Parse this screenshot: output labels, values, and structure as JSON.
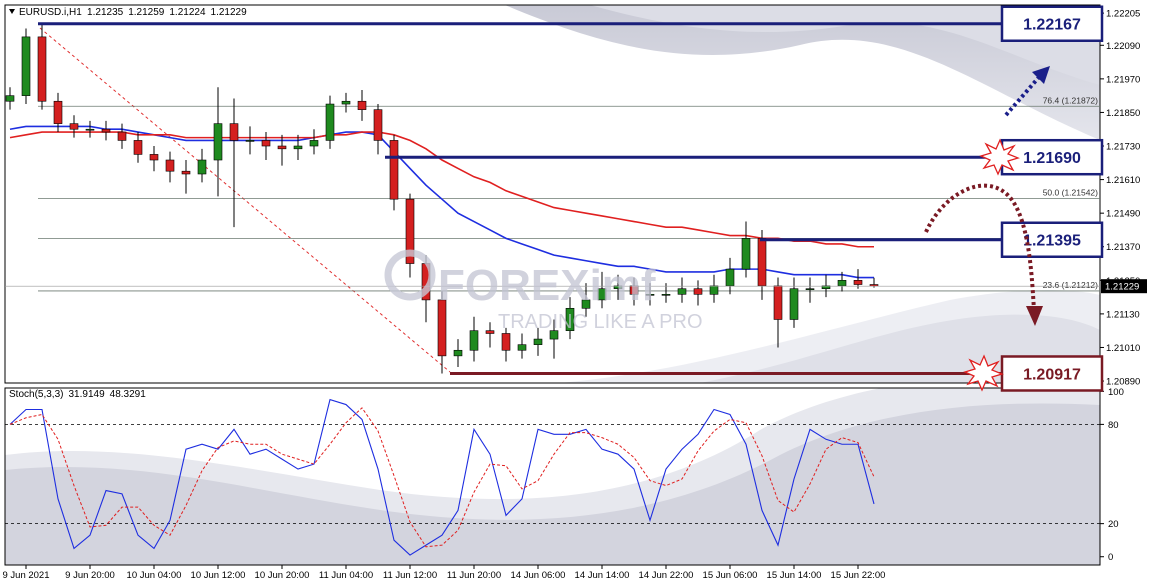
{
  "chart_data": {
    "type": "candlestick",
    "symbol": "EURUSD.i,H1",
    "categories": [
      null,
      "9 Jun 2021",
      null,
      null,
      null,
      "9 Jun 20:00",
      null,
      null,
      null,
      "10 Jun 04:00",
      null,
      null,
      null,
      "10 Jun 12:00",
      null,
      null,
      null,
      "10 Jun 20:00",
      null,
      null,
      null,
      "11 Jun 04:00",
      null,
      null,
      null,
      "11 Jun 12:00",
      null,
      null,
      null,
      "11 Jun 20:00",
      null,
      null,
      null,
      "14 Jun 06:00",
      null,
      null,
      null,
      "14 Jun 14:00",
      null,
      null,
      null,
      "14 Jun 22:00",
      null,
      null,
      null,
      "15 Jun 06:00",
      null,
      null,
      null,
      "15 Jun 14:00",
      null,
      null,
      null,
      "15 Jun 22:00",
      null
    ],
    "ohlc": {
      "open": [
        1.2189,
        1.2191,
        1.2212,
        1.2189,
        1.2181,
        1.2179,
        1.2179,
        1.2178,
        1.2175,
        1.217,
        1.2168,
        1.2164,
        1.2163,
        1.2168,
        1.2181,
        1.2175,
        1.2175,
        1.2173,
        1.2172,
        1.2173,
        1.2175,
        1.2188,
        1.2189,
        1.2186,
        1.2175,
        1.2154,
        1.2131,
        1.2118,
        1.2098,
        1.21,
        1.2107,
        1.2106,
        1.21,
        1.2102,
        1.2104,
        1.2107,
        1.2115,
        1.2118,
        1.2122,
        1.2123,
        1.212,
        1.212,
        1.212,
        1.2122,
        1.212,
        1.2123,
        1.2129,
        1.214,
        1.2123,
        1.2111,
        1.2122,
        1.2122,
        1.2123,
        1.2125,
        1.21235
      ],
      "high": [
        1.2194,
        1.2215,
        1.2217,
        1.2192,
        1.2184,
        1.2182,
        1.2182,
        1.2181,
        1.2178,
        1.2173,
        1.2171,
        1.2168,
        1.2172,
        1.2194,
        1.219,
        1.218,
        1.2178,
        1.2177,
        1.2177,
        1.2179,
        1.2191,
        1.2192,
        1.2193,
        1.2188,
        1.2177,
        1.2156,
        1.2134,
        1.2121,
        1.2104,
        1.2112,
        1.211,
        1.2108,
        1.2106,
        1.2108,
        1.2111,
        1.2119,
        1.2124,
        1.2128,
        1.2127,
        1.2126,
        1.2124,
        1.2124,
        1.2126,
        1.2125,
        1.2127,
        1.2133,
        1.2146,
        1.2143,
        1.2126,
        1.2126,
        1.2126,
        1.2127,
        1.2128,
        1.2129,
        1.21259
      ],
      "low": [
        1.2186,
        1.2188,
        1.2186,
        1.2178,
        1.2176,
        1.2176,
        1.2175,
        1.2172,
        1.2167,
        1.2164,
        1.216,
        1.2156,
        1.216,
        1.2155,
        1.2144,
        1.217,
        1.2168,
        1.2166,
        1.2168,
        1.217,
        1.2172,
        1.2185,
        1.2182,
        1.217,
        1.215,
        1.2126,
        1.211,
        1.20917,
        1.2094,
        1.2096,
        1.2101,
        1.2096,
        1.2097,
        1.2098,
        1.2097,
        1.2104,
        1.2112,
        1.2115,
        1.2118,
        1.2116,
        1.2116,
        1.2117,
        1.2117,
        1.2116,
        1.2117,
        1.212,
        1.2126,
        1.2118,
        1.2101,
        1.2108,
        1.2117,
        1.2119,
        1.2121,
        1.2122,
        1.21224
      ],
      "close": [
        1.2191,
        1.2212,
        1.2189,
        1.2181,
        1.2179,
        1.2179,
        1.2178,
        1.2175,
        1.217,
        1.2168,
        1.2164,
        1.2163,
        1.2168,
        1.2181,
        1.2175,
        1.2175,
        1.2173,
        1.2172,
        1.2173,
        1.2175,
        1.2188,
        1.2189,
        1.2186,
        1.2175,
        1.2154,
        1.2131,
        1.2118,
        1.2098,
        1.21,
        1.2107,
        1.2106,
        1.21,
        1.2102,
        1.2104,
        1.2107,
        1.2115,
        1.2118,
        1.2122,
        1.2123,
        1.212,
        1.212,
        1.212,
        1.2122,
        1.212,
        1.2123,
        1.2129,
        1.214,
        1.2123,
        1.2111,
        1.2122,
        1.2122,
        1.2123,
        1.2125,
        1.21235,
        1.21229
      ]
    },
    "up_color": "#1f8a1f",
    "down_color": "#d42020",
    "moving_averages": [
      {
        "color": "#1e2ee0",
        "values": [
          1.2179,
          1.218,
          1.218,
          1.218,
          1.218,
          1.218,
          1.2179,
          1.2179,
          1.2178,
          1.2177,
          1.2176,
          1.2175,
          1.2175,
          1.2175,
          1.2175,
          1.2175,
          1.2175,
          1.2175,
          1.2175,
          1.2176,
          1.2177,
          1.2178,
          1.2178,
          1.2177,
          1.2171,
          1.2165,
          1.2159,
          1.2154,
          1.2149,
          1.2146,
          1.2143,
          1.214,
          1.2138,
          1.2136,
          1.2134,
          1.2133,
          1.2132,
          1.2131,
          1.213,
          1.213,
          1.2129,
          1.2128,
          1.2128,
          1.2128,
          1.2128,
          1.2129,
          1.2129,
          1.2129,
          1.2128,
          1.2127,
          1.2127,
          1.2127,
          1.2127,
          1.2126,
          1.2126
        ]
      },
      {
        "color": "#e02020",
        "values": [
          1.2176,
          1.2177,
          1.2178,
          1.2178,
          1.2178,
          1.2178,
          1.2178,
          1.2178,
          1.2177,
          1.2177,
          1.2177,
          1.2176,
          1.2176,
          1.2176,
          1.2176,
          1.2176,
          1.2176,
          1.2176,
          1.2176,
          1.2176,
          1.2177,
          1.2177,
          1.2178,
          1.2178,
          1.2177,
          1.2175,
          1.2172,
          1.2168,
          1.2165,
          1.2162,
          1.216,
          1.2157,
          1.2155,
          1.2153,
          1.2151,
          1.215,
          1.2149,
          1.2148,
          1.2147,
          1.2146,
          1.2145,
          1.2144,
          1.2144,
          1.2143,
          1.2142,
          1.2141,
          1.2141,
          1.214,
          1.214,
          1.2139,
          1.2139,
          1.2138,
          1.2138,
          1.2137,
          1.2137
        ]
      }
    ],
    "ylim": [
      1.20883,
      1.22234
    ],
    "yticks": [
      {
        "value": 1.22205,
        "label": "1.22205"
      },
      {
        "value": 1.2209,
        "label": "1.22090"
      },
      {
        "value": 1.2197,
        "label": "1.21970"
      },
      {
        "value": 1.2185,
        "label": "1.21850"
      },
      {
        "value": 1.2173,
        "label": "1.21730"
      },
      {
        "value": 1.2161,
        "label": "1.21610"
      },
      {
        "value": 1.2149,
        "label": "1.21490"
      },
      {
        "value": 1.2137,
        "label": "1.21370"
      },
      {
        "value": 1.2125,
        "label": "1.21250"
      },
      {
        "value": 1.2113,
        "label": "1.21130"
      },
      {
        "value": 1.2101,
        "label": "1.21010"
      },
      {
        "value": 1.2089,
        "label": "1.20890"
      }
    ],
    "levels": [
      {
        "value": 1.22167,
        "color": "#1a1f7a"
      },
      {
        "value": 1.2169,
        "label": "1.21690",
        "color": "#1a1f7a"
      },
      {
        "value": 1.21395,
        "color": "#1a1f7a"
      },
      {
        "value": 1.20917,
        "color": "#7a1a24"
      }
    ],
    "fib_levels": [
      {
        "value": 1.21872,
        "label": "76.4 (1.21872)"
      },
      {
        "value": 1.21542,
        "label": "50.0 (1.21542)"
      },
      {
        "value": 1.214
      },
      {
        "value": 1.21212,
        "label": "23.6 (1.21212)"
      }
    ],
    "watermark": {
      "brand": "FOREXimf",
      "tagline": "TRADING LIKE A PRO"
    },
    "stochastic": {
      "label": "Stoch(5,3,3)",
      "k": {
        "color": "#1e2ee0",
        "values": [
          80,
          89,
          89,
          35,
          5,
          13,
          40,
          38,
          13,
          5,
          22,
          65,
          68,
          65,
          77,
          62,
          65,
          59,
          53,
          56,
          95,
          92,
          83,
          53,
          10,
          1,
          7,
          13,
          28,
          77,
          62,
          25,
          35,
          77,
          74,
          74,
          77,
          65,
          62,
          53,
          22,
          53,
          65,
          74,
          89,
          86,
          68,
          28,
          7,
          47,
          77,
          71,
          68,
          68,
          31.9149
        ]
      },
      "d": {
        "color": "#e02020",
        "values": [
          80,
          84,
          86,
          71,
          43,
          18,
          19,
          30,
          30,
          19,
          13,
          31,
          52,
          66,
          70,
          68,
          68,
          62,
          59,
          56,
          68,
          81,
          90,
          76,
          49,
          21,
          6,
          7,
          16,
          39,
          56,
          55,
          41,
          46,
          62,
          75,
          75,
          72,
          68,
          60,
          46,
          43,
          47,
          64,
          76,
          83,
          81,
          61,
          34,
          27,
          44,
          65,
          72,
          69,
          48.3291
        ]
      },
      "ylim": [
        -5,
        102
      ],
      "yticks": [
        0,
        20,
        80,
        100
      ],
      "level_lines": true
    }
  }
}
